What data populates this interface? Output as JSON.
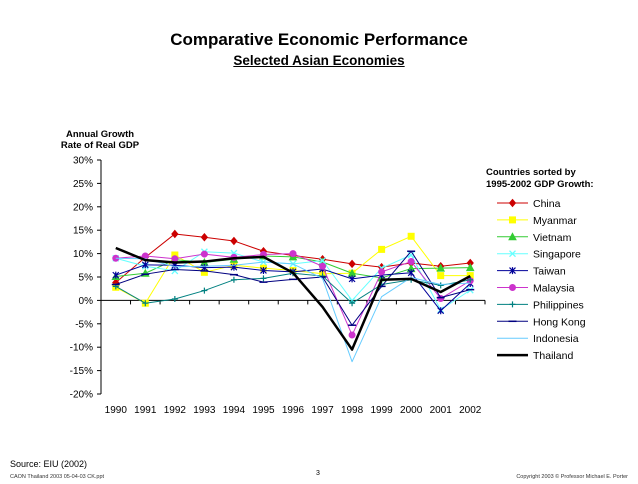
{
  "chart_data": {
    "type": "line",
    "title": "Comparative Economic Performance",
    "subtitle": "Selected Asian Economies",
    "ylabel_lines": [
      "Annual Growth",
      "Rate of Real GDP"
    ],
    "xlabel": "",
    "ylim": [
      -20,
      30
    ],
    "yticks": [
      30,
      25,
      20,
      15,
      10,
      5,
      0,
      -5,
      -10,
      -15,
      -20
    ],
    "ytick_labels": [
      "30%",
      "25%",
      "20%",
      "15%",
      "10%",
      "5%",
      "0%",
      "-5%",
      "-10%",
      "-15%",
      "-20%"
    ],
    "categories": [
      "1990",
      "1991",
      "1992",
      "1993",
      "1994",
      "1995",
      "1996",
      "1997",
      "1998",
      "1999",
      "2000",
      "2001",
      "2002"
    ],
    "legend_title_lines": [
      "Countries sorted by",
      "1995-2002 GDP Growth:"
    ],
    "legend_position": "right",
    "series": [
      {
        "name": "China",
        "color": "#cc0000",
        "marker": "diamond",
        "values": [
          3.8,
          9.2,
          14.2,
          13.5,
          12.7,
          10.5,
          9.6,
          8.8,
          7.8,
          7.1,
          8.0,
          7.3,
          8.0
        ]
      },
      {
        "name": "Myanmar",
        "color": "#ffff00",
        "marker": "square",
        "values": [
          2.8,
          -0.6,
          9.7,
          6.0,
          7.5,
          6.9,
          6.4,
          5.7,
          5.8,
          10.9,
          13.7,
          5.3,
          5.3
        ]
      },
      {
        "name": "Vietnam",
        "color": "#33cc33",
        "marker": "triangle",
        "values": [
          5.1,
          5.8,
          8.7,
          8.1,
          8.8,
          9.5,
          9.3,
          8.2,
          5.8,
          4.8,
          6.8,
          6.9,
          7.0
        ]
      },
      {
        "name": "Singapore",
        "color": "#66ffff",
        "marker": "x",
        "values": [
          9.0,
          7.3,
          6.3,
          10.4,
          10.1,
          8.2,
          7.8,
          8.5,
          0.0,
          6.9,
          9.7,
          -2.0,
          2.2
        ]
      },
      {
        "name": "Taiwan",
        "color": "#000099",
        "marker": "star",
        "values": [
          5.4,
          7.6,
          7.5,
          7.0,
          7.1,
          6.4,
          6.1,
          6.7,
          4.6,
          5.4,
          5.9,
          -2.2,
          3.6
        ]
      },
      {
        "name": "Malaysia",
        "color": "#cc33cc",
        "marker": "circle",
        "values": [
          9.0,
          9.5,
          8.9,
          9.9,
          9.2,
          9.8,
          10.0,
          7.3,
          -7.4,
          6.1,
          8.3,
          0.4,
          4.2
        ]
      },
      {
        "name": "Philippines",
        "color": "#008080",
        "marker": "plus",
        "values": [
          3.0,
          -0.6,
          0.3,
          2.1,
          4.4,
          4.7,
          5.8,
          5.2,
          -0.6,
          3.4,
          4.4,
          3.2,
          4.4
        ]
      },
      {
        "name": "Hong Kong",
        "color": "#000080",
        "marker": "dash",
        "values": [
          3.4,
          5.6,
          6.6,
          6.3,
          5.5,
          3.9,
          4.5,
          5.0,
          -5.3,
          3.0,
          10.5,
          0.6,
          2.3
        ]
      },
      {
        "name": "Indonesia",
        "color": "#66ccff",
        "marker": "none",
        "values": [
          9.0,
          8.9,
          7.2,
          7.3,
          7.5,
          8.2,
          7.8,
          4.7,
          -13.1,
          0.8,
          4.9,
          3.4,
          3.7
        ]
      },
      {
        "name": "Thailand",
        "color": "#000000",
        "marker": "none",
        "thick": true,
        "values": [
          11.2,
          8.6,
          8.1,
          8.3,
          9.0,
          9.3,
          5.9,
          -1.4,
          -10.5,
          4.4,
          4.6,
          1.8,
          5.2
        ]
      }
    ]
  },
  "source_text": "Source: EIU (2002)",
  "footer": {
    "left": "CAON Thailand 2003 05-04-03 CK.ppt",
    "page": "3",
    "right": "Copyright 2003 © Professor Michael E. Porter"
  }
}
